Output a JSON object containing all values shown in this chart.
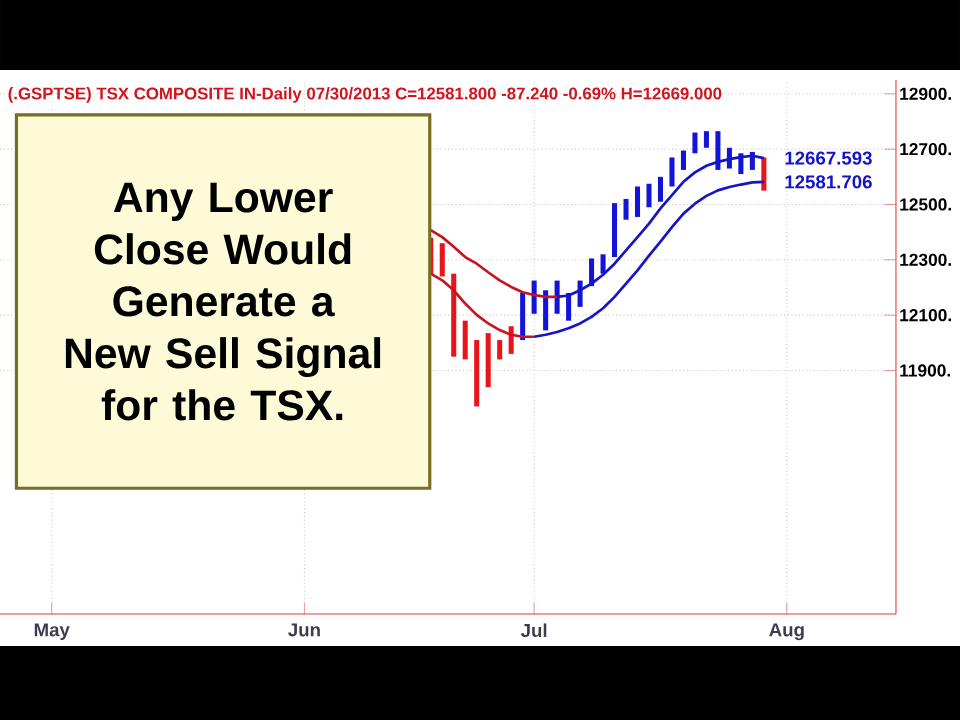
{
  "chart_data": {
    "type": "bar",
    "title": "(.GSPTSE) TSX COMPOSITE IN-Daily   07/30/2013  C=12581.800  -87.240  -0.69%  H=12669.000",
    "annotations": [
      "Any Lower Close Would Generate a New Sell Signal for the TSX."
    ],
    "categories": [
      null,
      null,
      null,
      null,
      "May",
      null,
      null,
      null,
      null,
      null,
      null,
      null,
      null,
      null,
      null,
      null,
      null,
      null,
      null,
      null,
      null,
      null,
      null,
      null,
      null,
      null,
      "Jun",
      null,
      null,
      null,
      null,
      null,
      null,
      null,
      null,
      null,
      null,
      null,
      null,
      null,
      null,
      null,
      null,
      null,
      null,
      null,
      "Jul",
      null,
      null,
      null,
      null,
      null,
      null,
      null,
      null,
      null,
      null,
      null,
      null,
      null,
      null,
      null,
      null,
      null,
      null,
      null,
      null,
      null,
      "Aug",
      null,
      null,
      null,
      null,
      null,
      null,
      null,
      null,
      null
    ],
    "ylim": [
      11020,
      12950
    ],
    "yticks": [
      {
        "value": 11900,
        "label": "11900."
      },
      {
        "value": 12100,
        "label": "12100."
      },
      {
        "value": 12300,
        "label": "12300."
      },
      {
        "value": 12500,
        "label": "12500."
      },
      {
        "value": 12700,
        "label": "12700."
      },
      {
        "value": 12900,
        "label": "12900."
      }
    ],
    "grid": true,
    "series": [
      {
        "base": [
          null,
          null,
          null,
          null,
          null,
          null,
          null,
          null,
          null,
          null,
          null,
          null,
          null,
          null,
          null,
          null,
          null,
          null,
          null,
          null,
          null,
          null,
          null,
          null,
          null,
          null,
          null,
          null,
          null,
          null,
          null,
          null,
          null,
          null,
          null,
          null,
          null,
          12250,
          12240,
          11950,
          11940,
          11770,
          11840,
          11940,
          11960,
          12010,
          12105,
          12045,
          12105,
          12080,
          12130,
          12205,
          12250,
          12310,
          12445,
          12455,
          12490,
          12510,
          12565,
          12625,
          12685,
          12705,
          12625,
          12630,
          12610,
          12625,
          12550,
          null,
          null,
          null,
          null,
          null,
          null,
          null,
          null,
          null,
          null,
          null
        ],
        "values": [
          null,
          null,
          null,
          null,
          null,
          null,
          null,
          null,
          null,
          null,
          null,
          null,
          null,
          null,
          null,
          null,
          null,
          null,
          null,
          null,
          null,
          null,
          null,
          null,
          null,
          null,
          null,
          null,
          null,
          null,
          null,
          null,
          null,
          null,
          null,
          null,
          null,
          130,
          120,
          300,
          140,
          240,
          195,
          70,
          100,
          170,
          120,
          145,
          120,
          100,
          95,
          100,
          70,
          195,
          75,
          110,
          85,
          90,
          105,
          70,
          75,
          60,
          140,
          75,
          75,
          65,
          120,
          null,
          null,
          null,
          null,
          null,
          null,
          null,
          null,
          null,
          null,
          null
        ],
        "colors": [
          null,
          null,
          null,
          null,
          null,
          null,
          null,
          null,
          null,
          null,
          null,
          null,
          null,
          null,
          null,
          null,
          null,
          null,
          null,
          null,
          null,
          null,
          null,
          null,
          null,
          null,
          null,
          null,
          null,
          null,
          null,
          null,
          null,
          null,
          null,
          null,
          null,
          "#e8141c",
          "#e8141c",
          "#e8141c",
          "#e8141c",
          "#e8141c",
          "#e8141c",
          "#e8141c",
          "#e8141c",
          "#1414d8",
          "#1414d8",
          "#1414d8",
          "#1414d8",
          "#1414d8",
          "#1414d8",
          "#1414d8",
          "#1414d8",
          "#1414d8",
          "#1414d8",
          "#1414d8",
          "#1414d8",
          "#1414d8",
          "#1414d8",
          "#1414d8",
          "#1414d8",
          "#1414d8",
          "#1414d8",
          "#1414d8",
          "#1414d8",
          "#1414d8",
          "#e8141c",
          null,
          null,
          null,
          null,
          null,
          null,
          null,
          null,
          null,
          null,
          null
        ]
      },
      {
        "type": "line",
        "color": "#c8141c",
        "values": [
          null,
          null,
          null,
          null,
          null,
          null,
          null,
          null,
          null,
          null,
          null,
          null,
          null,
          null,
          null,
          null,
          null,
          null,
          null,
          null,
          null,
          null,
          null,
          null,
          null,
          null,
          null,
          null,
          null,
          null,
          null,
          null,
          null,
          null,
          null,
          null,
          null,
          12407,
          12382,
          12347,
          12310,
          12286,
          12255,
          12226,
          12202,
          12183,
          12173,
          12166,
          12166,
          null,
          null,
          null,
          null,
          null,
          null,
          null,
          null,
          null,
          null,
          null,
          null,
          null,
          null,
          null,
          null,
          null,
          null,
          null,
          null,
          null,
          null,
          null,
          null,
          null,
          null,
          null,
          null,
          null
        ]
      },
      {
        "type": "line",
        "color": "#1414c8",
        "values": [
          null,
          null,
          null,
          null,
          null,
          null,
          null,
          null,
          null,
          null,
          null,
          null,
          null,
          null,
          null,
          null,
          null,
          null,
          null,
          null,
          null,
          null,
          null,
          null,
          null,
          null,
          null,
          null,
          null,
          null,
          null,
          null,
          null,
          null,
          null,
          null,
          null,
          null,
          null,
          null,
          null,
          null,
          null,
          null,
          null,
          null,
          null,
          null,
          12166,
          12171,
          12190,
          12214,
          12246,
          12286,
          12334,
          12382,
          12431,
          12486,
          12534,
          12582,
          12616,
          12640,
          12654,
          12664,
          12671,
          12676,
          12667.593,
          null,
          null,
          null,
          null,
          null,
          null,
          null,
          null,
          null,
          null,
          null
        ],
        "value_labels": [
          null,
          null,
          null,
          null,
          null,
          null,
          null,
          null,
          null,
          null,
          null,
          null,
          null,
          null,
          null,
          null,
          null,
          null,
          null,
          null,
          null,
          null,
          null,
          null,
          null,
          null,
          null,
          null,
          null,
          null,
          null,
          null,
          null,
          null,
          null,
          null,
          null,
          null,
          null,
          null,
          null,
          null,
          null,
          null,
          null,
          null,
          null,
          null,
          null,
          null,
          null,
          null,
          null,
          null,
          null,
          null,
          null,
          null,
          null,
          null,
          null,
          null,
          null,
          null,
          null,
          null,
          "12667.593",
          null,
          null,
          null,
          null,
          null,
          null,
          null,
          null,
          null,
          null,
          null
        ]
      },
      {
        "type": "line",
        "color": "#c8141c",
        "values": [
          null,
          null,
          null,
          null,
          null,
          null,
          null,
          null,
          null,
          null,
          null,
          null,
          null,
          null,
          null,
          null,
          null,
          null,
          null,
          null,
          null,
          null,
          null,
          null,
          null,
          null,
          null,
          null,
          null,
          null,
          null,
          null,
          null,
          null,
          null,
          null,
          null,
          12250,
          12226,
          12190,
          12142,
          12101,
          12070,
          12046,
          12029,
          12022,
          12022,
          null,
          null,
          null,
          null,
          null,
          null,
          null,
          null,
          null,
          null,
          null,
          null,
          null,
          null,
          null,
          null,
          null,
          null,
          null,
          null,
          null,
          null,
          null,
          null,
          null,
          null,
          null,
          null,
          null,
          null,
          null
        ]
      },
      {
        "type": "line",
        "color": "#1414c8",
        "values": [
          null,
          null,
          null,
          null,
          null,
          null,
          null,
          null,
          null,
          null,
          null,
          null,
          null,
          null,
          null,
          null,
          null,
          null,
          null,
          null,
          null,
          null,
          null,
          null,
          null,
          null,
          null,
          null,
          null,
          null,
          null,
          null,
          null,
          null,
          null,
          null,
          null,
          null,
          null,
          null,
          null,
          null,
          null,
          null,
          null,
          null,
          12022,
          12029,
          12039,
          12053,
          12070,
          12094,
          12125,
          12166,
          12214,
          12262,
          12315,
          12366,
          12418,
          12467,
          12503,
          12531,
          12551,
          12563,
          12572,
          12580,
          12581.706,
          null,
          null,
          null,
          null,
          null,
          null,
          null,
          null,
          null,
          null,
          null
        ],
        "value_labels": [
          null,
          null,
          null,
          null,
          null,
          null,
          null,
          null,
          null,
          null,
          null,
          null,
          null,
          null,
          null,
          null,
          null,
          null,
          null,
          null,
          null,
          null,
          null,
          null,
          null,
          null,
          null,
          null,
          null,
          null,
          null,
          null,
          null,
          null,
          null,
          null,
          null,
          null,
          null,
          null,
          null,
          null,
          null,
          null,
          null,
          null,
          null,
          null,
          null,
          null,
          null,
          null,
          null,
          null,
          null,
          null,
          null,
          null,
          null,
          null,
          null,
          null,
          null,
          null,
          null,
          null,
          "12581.706",
          null,
          null,
          null,
          null,
          null,
          null,
          null,
          null,
          null,
          null,
          null
        ]
      }
    ]
  }
}
